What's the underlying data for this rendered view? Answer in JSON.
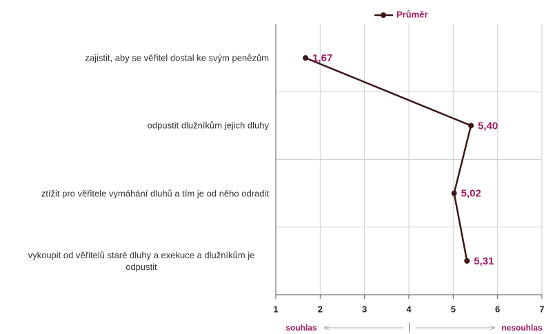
{
  "chart_data": {
    "type": "line",
    "categories": [
      "zajistit, aby se věřitel dostal ke svým penězům",
      "odpustit dlužníkům jejich dluhy",
      "ztížit pro věřitele vymáhání dluhů a tím je od něho odradit",
      "vykoupit od věřitelů staré dluhy a exekuce a dlužníkům je odpustit"
    ],
    "series": [
      {
        "name": "Průměr",
        "color": "#3b1616",
        "label_color": "#9b1b5e",
        "values": [
          1.67,
          5.4,
          5.02,
          5.31
        ],
        "value_labels": [
          "1,67",
          "5,40",
          "5,02",
          "5,31"
        ]
      }
    ],
    "xlim": [
      1,
      7
    ],
    "xticks": [
      1,
      2,
      3,
      4,
      5,
      6,
      7
    ],
    "grid": true,
    "legend": "top",
    "annotations": [
      "souhlas",
      "nesouhlas"
    ]
  }
}
